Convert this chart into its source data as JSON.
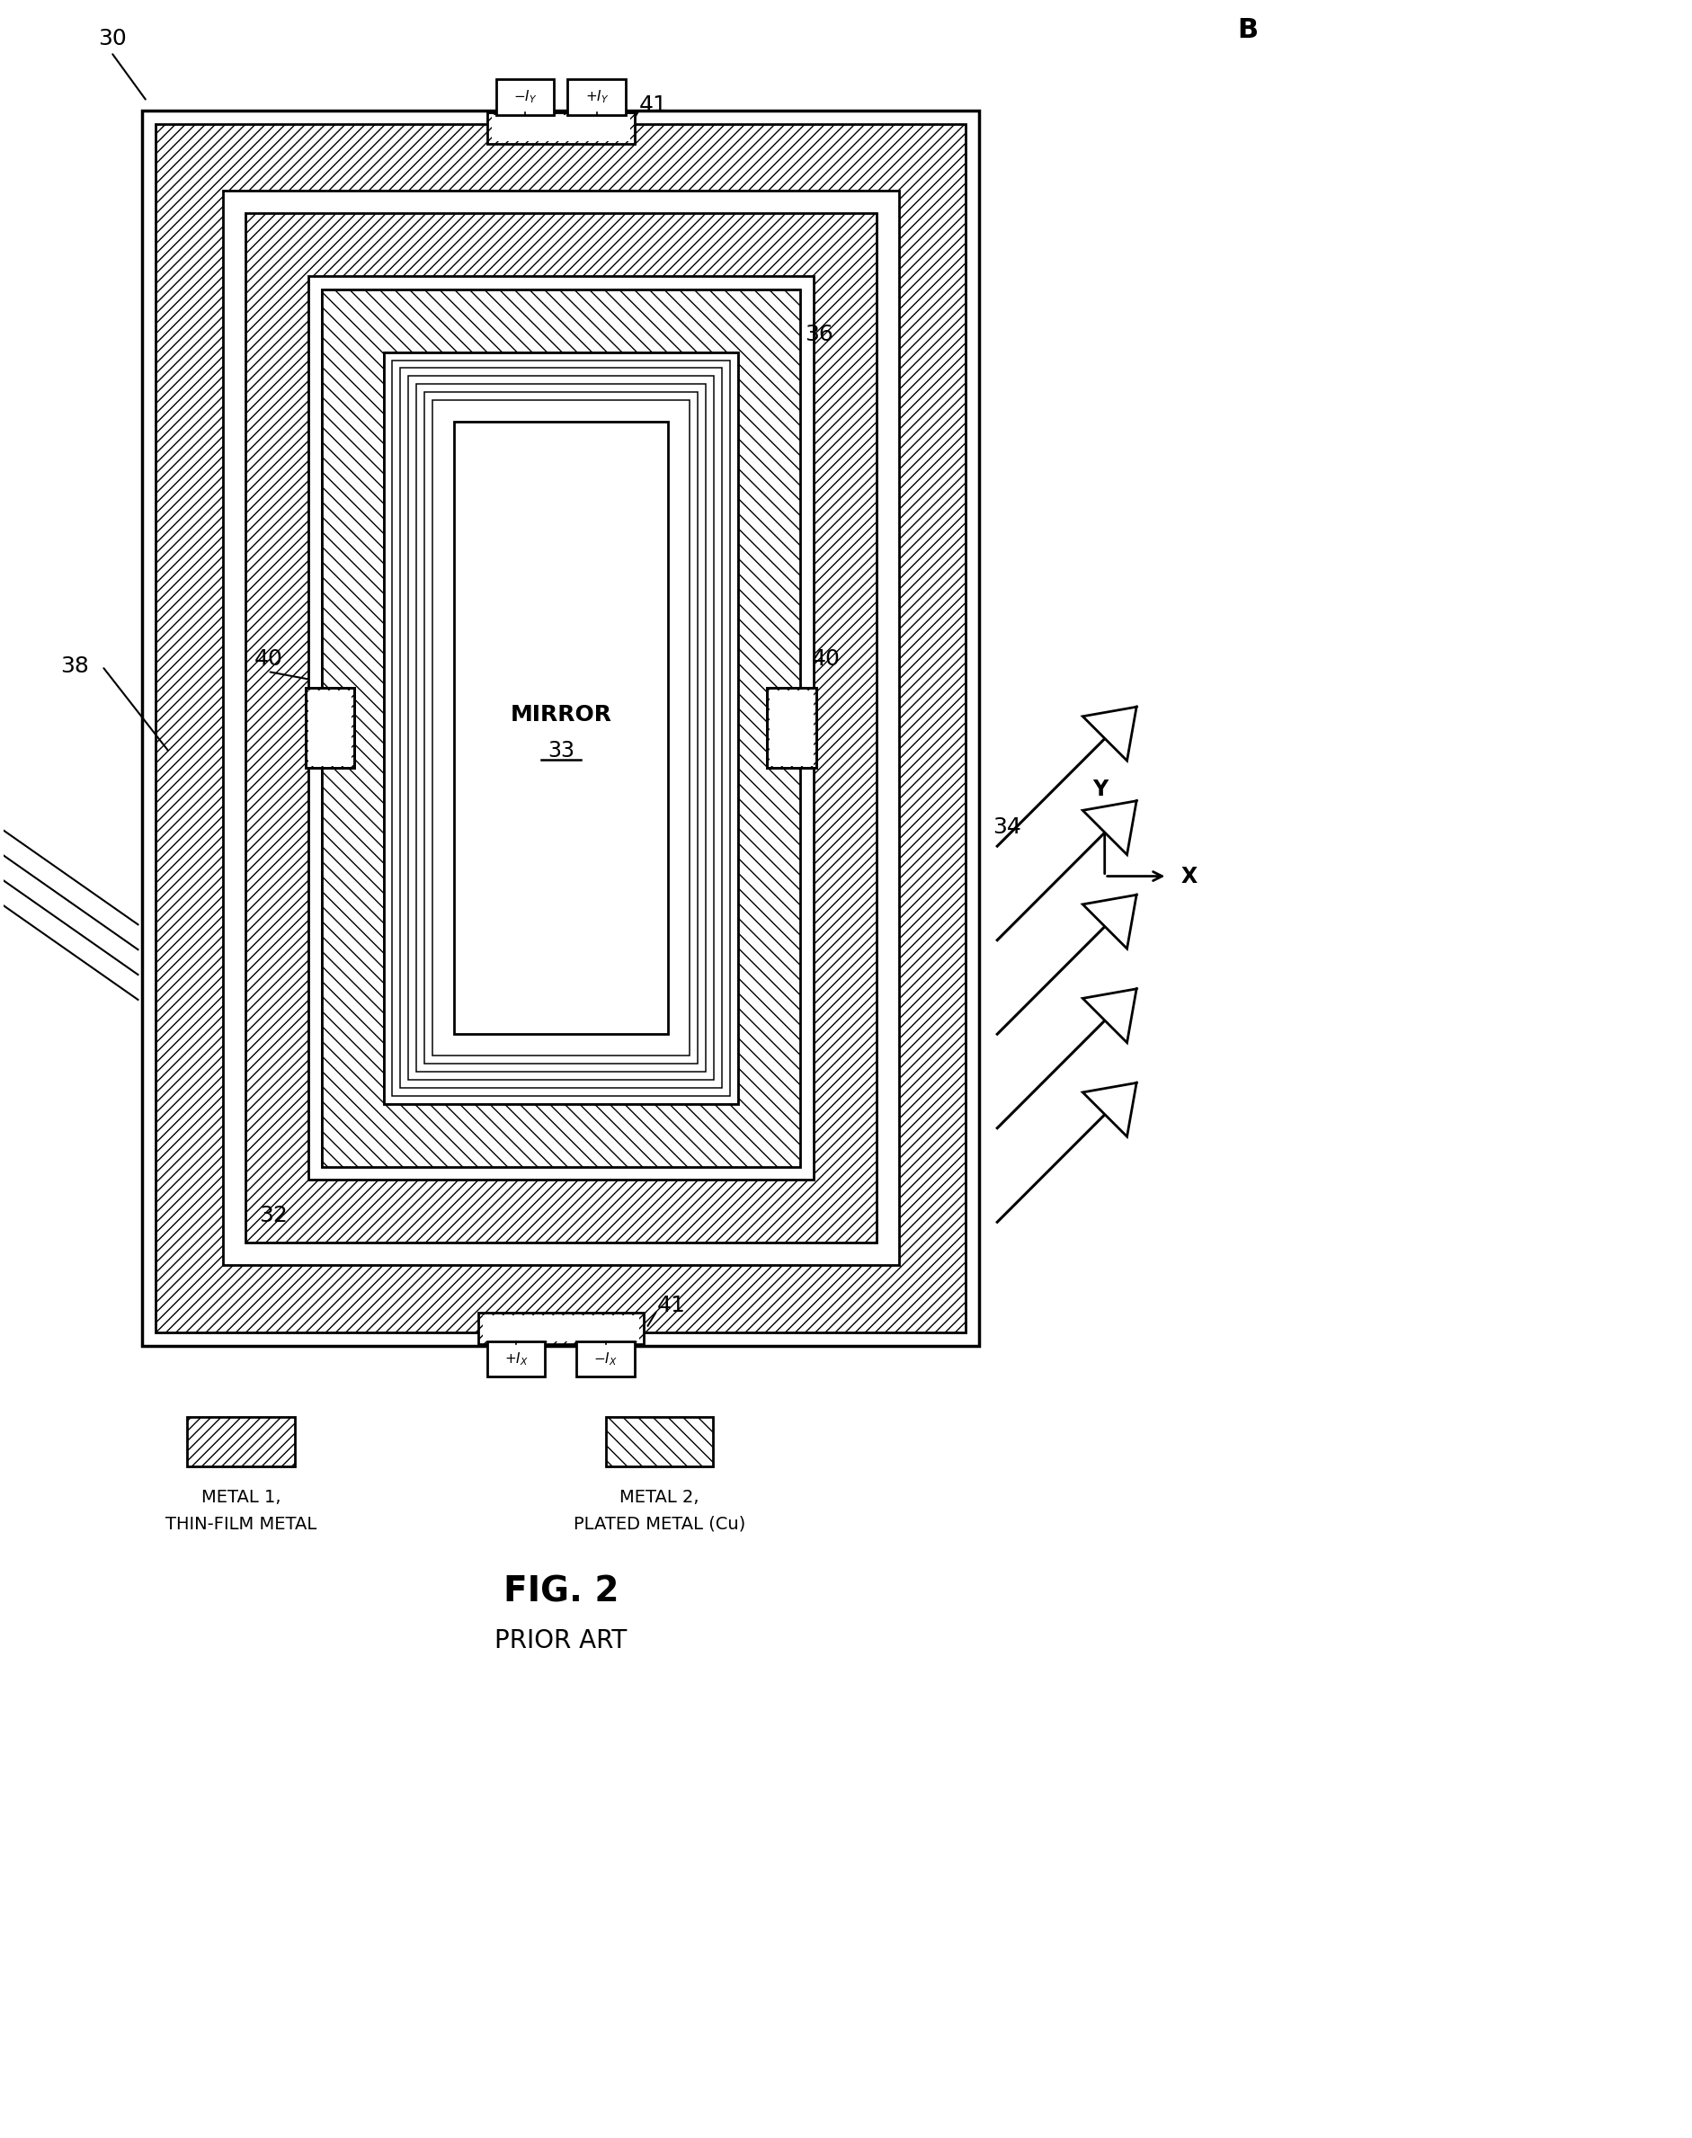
{
  "fig_label": "FIG. 2",
  "fig_sublabel": "PRIOR ART",
  "label_30": "30",
  "label_32": "32",
  "label_33": "33",
  "label_34": "34",
  "label_36": "36",
  "label_38": "38",
  "label_40_left": "40",
  "label_40_right": "40",
  "label_41_top": "41",
  "label_41_bot": "41",
  "label_B": "B",
  "label_X": "X",
  "label_Y": "Y",
  "mirror_text": "MIRROR",
  "legend1_text1": "METAL 1,",
  "legend1_text2": "THIN-FILM METAL",
  "legend2_text1": "METAL 2,",
  "legend2_text2": "PLATED METAL (Cu)",
  "bg_color": "#ffffff"
}
